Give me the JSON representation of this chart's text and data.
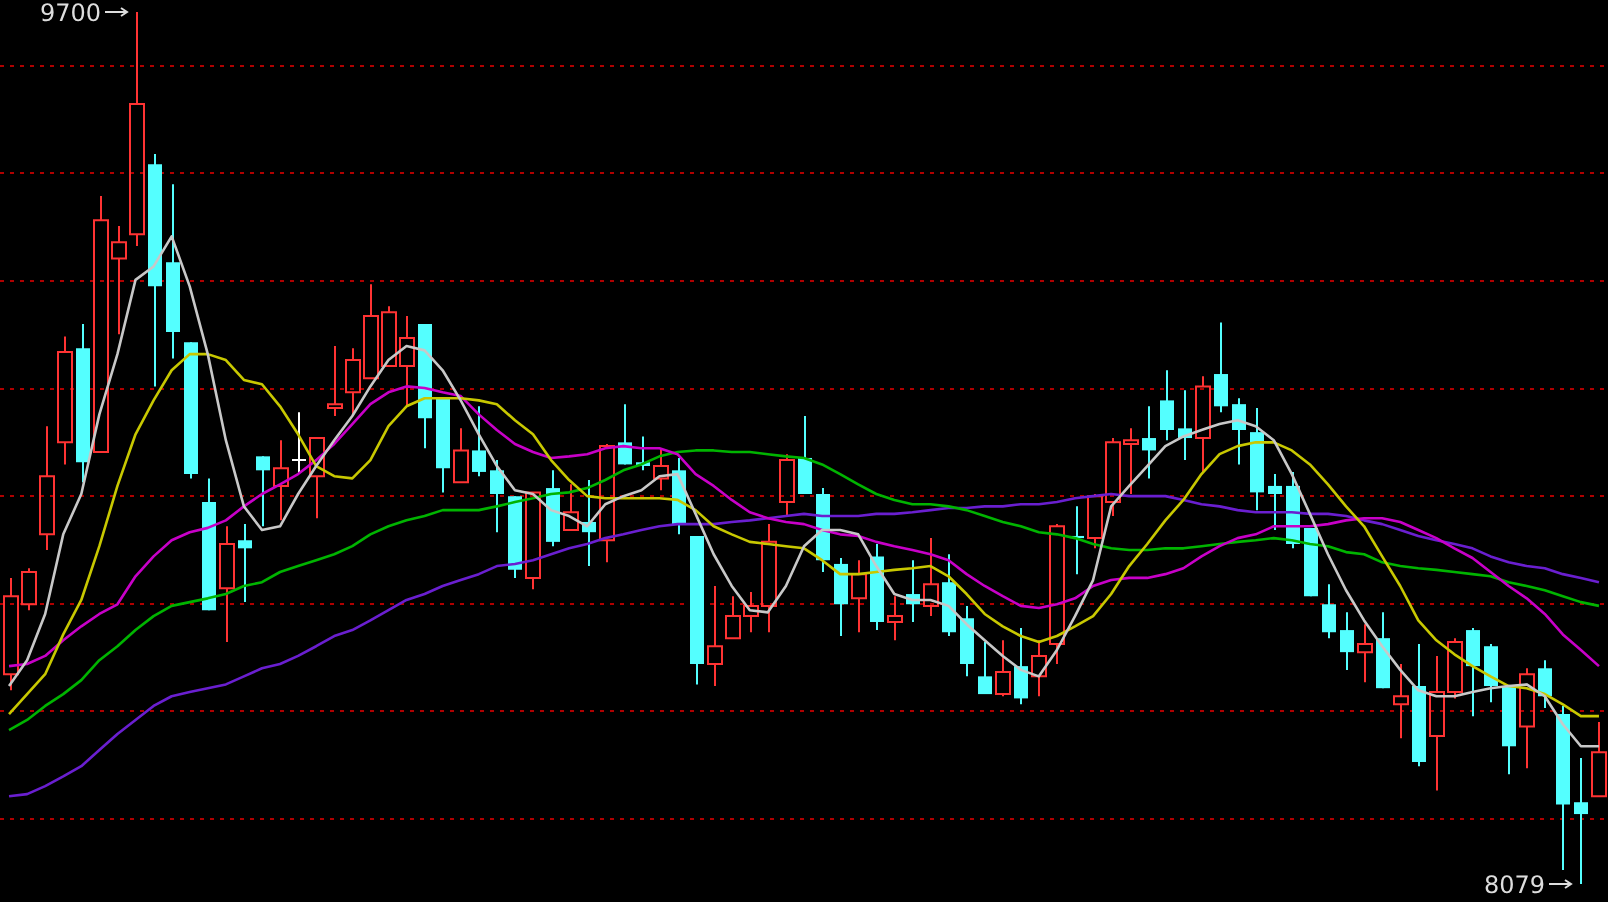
{
  "chart_data": {
    "type": "candlestick",
    "categories": [
      null,
      null,
      null,
      null,
      null,
      null,
      null,
      null,
      null,
      null,
      null,
      null,
      null,
      null,
      null,
      null,
      null,
      null,
      null,
      null,
      null,
      null,
      null,
      null,
      null,
      null,
      null,
      null,
      null,
      null,
      null,
      null,
      null,
      null,
      null,
      null,
      null,
      null,
      null,
      null,
      null,
      null,
      null,
      null,
      null,
      null,
      null,
      null,
      null,
      null,
      null,
      null,
      null,
      null,
      null,
      null,
      null,
      null,
      null,
      null,
      null,
      null,
      null,
      null,
      null,
      null,
      null,
      null,
      null,
      null,
      null,
      null,
      null,
      null,
      null,
      null,
      null,
      null,
      null,
      null,
      null,
      null,
      null,
      null,
      null,
      null,
      null,
      null,
      null
    ],
    "ohlc": [
      [
        8469,
        8648,
        8439,
        8614
      ],
      [
        8599,
        8666,
        8588,
        8659
      ],
      [
        8729,
        8930,
        8700,
        8837
      ],
      [
        8900,
        9097,
        8859,
        9068
      ],
      [
        9075,
        9120,
        8826,
        8863
      ],
      [
        8882,
        9358,
        8882,
        9313
      ],
      [
        9242,
        9302,
        9101,
        9272
      ],
      [
        9287,
        9700,
        9265,
        9529
      ],
      [
        9417,
        9436,
        9004,
        9190
      ],
      [
        9235,
        9380,
        9056,
        9105
      ],
      [
        9086,
        9086,
        8833,
        8841
      ],
      [
        8789,
        8833,
        8588,
        8588
      ],
      [
        8629,
        8744,
        8529,
        8711
      ],
      [
        8718,
        8748,
        8603,
        8703
      ],
      [
        8874,
        8874,
        8744,
        8848
      ],
      [
        8819,
        8904,
        8755,
        8852
      ],
      [
        8867,
        8956,
        8841,
        8867
      ],
      [
        8837,
        8908,
        8759,
        8908
      ],
      [
        8964,
        9079,
        8949,
        8971
      ],
      [
        8993,
        9075,
        8952,
        9053
      ],
      [
        9019,
        9194,
        9019,
        9135
      ],
      [
        9042,
        9153,
        9042,
        9142
      ],
      [
        9042,
        9135,
        8967,
        9094
      ],
      [
        9120,
        9120,
        8889,
        8945
      ],
      [
        8982,
        8982,
        8807,
        8852
      ],
      [
        8826,
        8926,
        8826,
        8885
      ],
      [
        8885,
        8967,
        8837,
        8845
      ],
      [
        8848,
        8867,
        8733,
        8804
      ],
      [
        8800,
        8800,
        8648,
        8663
      ],
      [
        8648,
        8807,
        8627,
        8807
      ],
      [
        8815,
        8848,
        8707,
        8715
      ],
      [
        8737,
        8822,
        8737,
        8770
      ],
      [
        8752,
        8830,
        8670,
        8733
      ],
      [
        8718,
        8897,
        8677,
        8893
      ],
      [
        8900,
        8971,
        8859,
        8859
      ],
      [
        8863,
        8911,
        8848,
        8856
      ],
      [
        8833,
        8889,
        8811,
        8856
      ],
      [
        8848,
        8871,
        8729,
        8748
      ],
      [
        8726,
        8726,
        8450,
        8488
      ],
      [
        8488,
        8633,
        8447,
        8521
      ],
      [
        8536,
        8614,
        8536,
        8577
      ],
      [
        8577,
        8622,
        8547,
        8596
      ],
      [
        8596,
        8748,
        8547,
        8715
      ],
      [
        8789,
        8878,
        8763,
        8867
      ],
      [
        8871,
        8949,
        8804,
        8804
      ],
      [
        8804,
        8815,
        8659,
        8681
      ],
      [
        8674,
        8685,
        8540,
        8599
      ],
      [
        8610,
        8681,
        8547,
        8655
      ],
      [
        8688,
        8711,
        8551,
        8566
      ],
      [
        8566,
        8614,
        8532,
        8577
      ],
      [
        8618,
        8681,
        8566,
        8599
      ],
      [
        8596,
        8722,
        8577,
        8636
      ],
      [
        8640,
        8692,
        8540,
        8547
      ],
      [
        8573,
        8596,
        8465,
        8488
      ],
      [
        8465,
        8529,
        8432,
        8432
      ],
      [
        8432,
        8532,
        8428,
        8473
      ],
      [
        8484,
        8555,
        8413,
        8424
      ],
      [
        8465,
        8532,
        8428,
        8503
      ],
      [
        8525,
        8748,
        8488,
        8744
      ],
      [
        8726,
        8781,
        8655,
        8722
      ],
      [
        8722,
        8804,
        8703,
        8800
      ],
      [
        8789,
        8908,
        8763,
        8900
      ],
      [
        8897,
        8926,
        8804,
        8904
      ],
      [
        8908,
        8967,
        8833,
        8885
      ],
      [
        8978,
        9034,
        8904,
        8923
      ],
      [
        8926,
        8997,
        8867,
        8908
      ],
      [
        8908,
        9023,
        8845,
        9004
      ],
      [
        9027,
        9123,
        8956,
        8967
      ],
      [
        8971,
        8982,
        8859,
        8923
      ],
      [
        8919,
        8964,
        8774,
        8807
      ],
      [
        8819,
        8841,
        8737,
        8804
      ],
      [
        8819,
        8845,
        8703,
        8711
      ],
      [
        8741,
        8741,
        8614,
        8614
      ],
      [
        8599,
        8636,
        8536,
        8547
      ],
      [
        8551,
        8584,
        8477,
        8510
      ],
      [
        8510,
        8562,
        8454,
        8525
      ],
      [
        8536,
        8584,
        8443,
        8443
      ],
      [
        8413,
        8488,
        8350,
        8428
      ],
      [
        8447,
        8525,
        8298,
        8306
      ],
      [
        8354,
        8503,
        8253,
        8436
      ],
      [
        8436,
        8536,
        8424,
        8529
      ],
      [
        8551,
        8555,
        8391,
        8484
      ],
      [
        8521,
        8525,
        8417,
        8447
      ],
      [
        8447,
        8447,
        8283,
        8335
      ],
      [
        8372,
        8480,
        8294,
        8469
      ],
      [
        8480,
        8495,
        8406,
        8428
      ],
      [
        8395,
        8410,
        8105,
        8227
      ],
      [
        8231,
        8313,
        8079,
        8209
      ],
      [
        8242,
        8380,
        8242,
        8324
      ]
    ],
    "colors": [
      "#ff3333",
      "#ff3333",
      "#ff3333",
      "#ff3333",
      "#54ffff",
      "#ff3333",
      "#ff3333",
      "#ff3333",
      "#54ffff",
      "#54ffff",
      "#54ffff",
      "#54ffff",
      "#ff3333",
      "#54ffff",
      "#54ffff",
      "#ff3333",
      "#ffffff",
      "#ff3333",
      "#ff3333",
      "#ff3333",
      "#ff3333",
      "#ff3333",
      "#ff3333",
      "#54ffff",
      "#54ffff",
      "#ff3333",
      "#54ffff",
      "#54ffff",
      "#54ffff",
      "#ff3333",
      "#54ffff",
      "#ff3333",
      "#54ffff",
      "#ff3333",
      "#54ffff",
      "#54ffff",
      "#ff3333",
      "#54ffff",
      "#54ffff",
      "#ff3333",
      "#ff3333",
      "#ff3333",
      "#ff3333",
      "#ff3333",
      "#54ffff",
      "#54ffff",
      "#54ffff",
      "#ff3333",
      "#54ffff",
      "#ff3333",
      "#54ffff",
      "#ff3333",
      "#54ffff",
      "#54ffff",
      "#54ffff",
      "#ff3333",
      "#54ffff",
      "#ff3333",
      "#ff3333",
      "#54ffff",
      "#ff3333",
      "#ff3333",
      "#ff3333",
      "#54ffff",
      "#54ffff",
      "#54ffff",
      "#ff3333",
      "#54ffff",
      "#54ffff",
      "#54ffff",
      "#54ffff",
      "#54ffff",
      "#54ffff",
      "#54ffff",
      "#54ffff",
      "#ff3333",
      "#54ffff",
      "#ff3333",
      "#54ffff",
      "#ff3333",
      "#ff3333",
      "#54ffff",
      "#54ffff",
      "#54ffff",
      "#ff3333",
      "#54ffff",
      "#54ffff",
      "#54ffff",
      "#ff3333"
    ],
    "series": [
      {
        "type": "line",
        "color": "#c8c8c8",
        "values": [
          8447,
          8495,
          8581,
          8729,
          8804,
          8952,
          9064,
          9202,
          9227,
          9283,
          9190,
          9064,
          8904,
          8781,
          8737,
          8744,
          8804,
          8856,
          8904,
          8949,
          9004,
          9053,
          9079,
          9071,
          9034,
          8978,
          8915,
          8856,
          8811,
          8804,
          8774,
          8763,
          8744,
          8785,
          8800,
          8811,
          8837,
          8841,
          8767,
          8692,
          8633,
          8588,
          8584,
          8633,
          8707,
          8737,
          8737,
          8729,
          8670,
          8618,
          8607,
          8607,
          8596,
          8562,
          8532,
          8503,
          8477,
          8465,
          8514,
          8577,
          8644,
          8781,
          8819,
          8856,
          8893,
          8911,
          8923,
          8934,
          8941,
          8930,
          8904,
          8841,
          8767,
          8692,
          8625,
          8569,
          8521,
          8477,
          8439,
          8428,
          8428,
          8436,
          8443,
          8447,
          8450,
          8428,
          8376,
          8335,
          8335
        ]
      },
      {
        "type": "line",
        "color": "#c8c800",
        "values": [
          8395,
          8432,
          8469,
          8543,
          8607,
          8707,
          8819,
          8915,
          8978,
          9034,
          9064,
          9064,
          9053,
          9016,
          9008,
          8967,
          8915,
          8856,
          8837,
          8833,
          8867,
          8930,
          8967,
          8982,
          8982,
          8982,
          8978,
          8971,
          8941,
          8915,
          8867,
          8830,
          8800,
          8796,
          8796,
          8796,
          8796,
          8793,
          8774,
          8744,
          8729,
          8715,
          8711,
          8707,
          8703,
          8681,
          8655,
          8655,
          8659,
          8663,
          8666,
          8670,
          8651,
          8618,
          8581,
          8558,
          8540,
          8529,
          8540,
          8558,
          8577,
          8618,
          8670,
          8711,
          8755,
          8793,
          8841,
          8878,
          8893,
          8900,
          8900,
          8885,
          8859,
          8822,
          8781,
          8744,
          8688,
          8633,
          8569,
          8532,
          8506,
          8484,
          8465,
          8447,
          8443,
          8432,
          8413,
          8391,
          8391
        ]
      },
      {
        "type": "line",
        "color": "#c800c8",
        "values": [
          8484,
          8488,
          8503,
          8532,
          8558,
          8581,
          8599,
          8651,
          8688,
          8718,
          8733,
          8741,
          8755,
          8781,
          8804,
          8822,
          8841,
          8867,
          8897,
          8934,
          8971,
          8993,
          9004,
          9001,
          8993,
          8986,
          8952,
          8923,
          8897,
          8882,
          8871,
          8874,
          8878,
          8889,
          8893,
          8889,
          8889,
          8878,
          8841,
          8819,
          8793,
          8770,
          8759,
          8752,
          8748,
          8737,
          8729,
          8726,
          8715,
          8707,
          8700,
          8692,
          8681,
          8655,
          8633,
          8614,
          8596,
          8592,
          8599,
          8610,
          8633,
          8644,
          8648,
          8648,
          8655,
          8666,
          8688,
          8707,
          8722,
          8729,
          8744,
          8744,
          8744,
          8748,
          8755,
          8759,
          8759,
          8752,
          8737,
          8722,
          8703,
          8685,
          8659,
          8633,
          8610,
          8581,
          8543,
          8514,
          8484
        ]
      },
      {
        "type": "line",
        "color": "#00b400",
        "values": [
          8365,
          8384,
          8410,
          8432,
          8458,
          8495,
          8521,
          8551,
          8577,
          8596,
          8603,
          8610,
          8618,
          8633,
          8640,
          8659,
          8670,
          8681,
          8692,
          8707,
          8729,
          8744,
          8755,
          8763,
          8774,
          8774,
          8774,
          8781,
          8789,
          8796,
          8804,
          8807,
          8815,
          8830,
          8848,
          8859,
          8874,
          8882,
          8885,
          8885,
          8882,
          8882,
          8878,
          8874,
          8871,
          8859,
          8841,
          8822,
          8804,
          8793,
          8785,
          8785,
          8781,
          8774,
          8763,
          8752,
          8744,
          8733,
          8729,
          8722,
          8711,
          8703,
          8700,
          8700,
          8703,
          8703,
          8707,
          8711,
          8715,
          8718,
          8722,
          8718,
          8711,
          8707,
          8696,
          8692,
          8677,
          8670,
          8666,
          8663,
          8659,
          8655,
          8651,
          8640,
          8633,
          8625,
          8614,
          8603,
          8596
        ]
      },
      {
        "type": "line",
        "color": "#6a1fd0",
        "values": [
          8242,
          8246,
          8261,
          8279,
          8298,
          8328,
          8358,
          8384,
          8410,
          8428,
          8436,
          8443,
          8450,
          8465,
          8480,
          8488,
          8503,
          8521,
          8540,
          8551,
          8569,
          8588,
          8607,
          8618,
          8633,
          8644,
          8655,
          8670,
          8674,
          8681,
          8692,
          8703,
          8711,
          8722,
          8729,
          8737,
          8744,
          8748,
          8748,
          8748,
          8752,
          8755,
          8759,
          8763,
          8767,
          8763,
          8763,
          8763,
          8767,
          8767,
          8770,
          8774,
          8778,
          8778,
          8781,
          8781,
          8785,
          8785,
          8789,
          8796,
          8800,
          8804,
          8800,
          8800,
          8800,
          8793,
          8785,
          8781,
          8774,
          8770,
          8770,
          8770,
          8767,
          8767,
          8763,
          8755,
          8748,
          8737,
          8726,
          8718,
          8711,
          8703,
          8688,
          8677,
          8670,
          8666,
          8655,
          8648,
          8640
        ]
      }
    ],
    "yticks": [
      {
        "value": 8200,
        "label": null
      },
      {
        "value": 8400,
        "label": null
      },
      {
        "value": 8600,
        "label": null
      },
      {
        "value": 8800,
        "label": null
      },
      {
        "value": 9000,
        "label": null
      },
      {
        "value": 9200,
        "label": null
      },
      {
        "value": 9400,
        "label": null
      },
      {
        "value": 9600,
        "label": null
      }
    ],
    "grid": "y",
    "tick_labels": false,
    "annotations": [
      "9700",
      "8079"
    ]
  }
}
